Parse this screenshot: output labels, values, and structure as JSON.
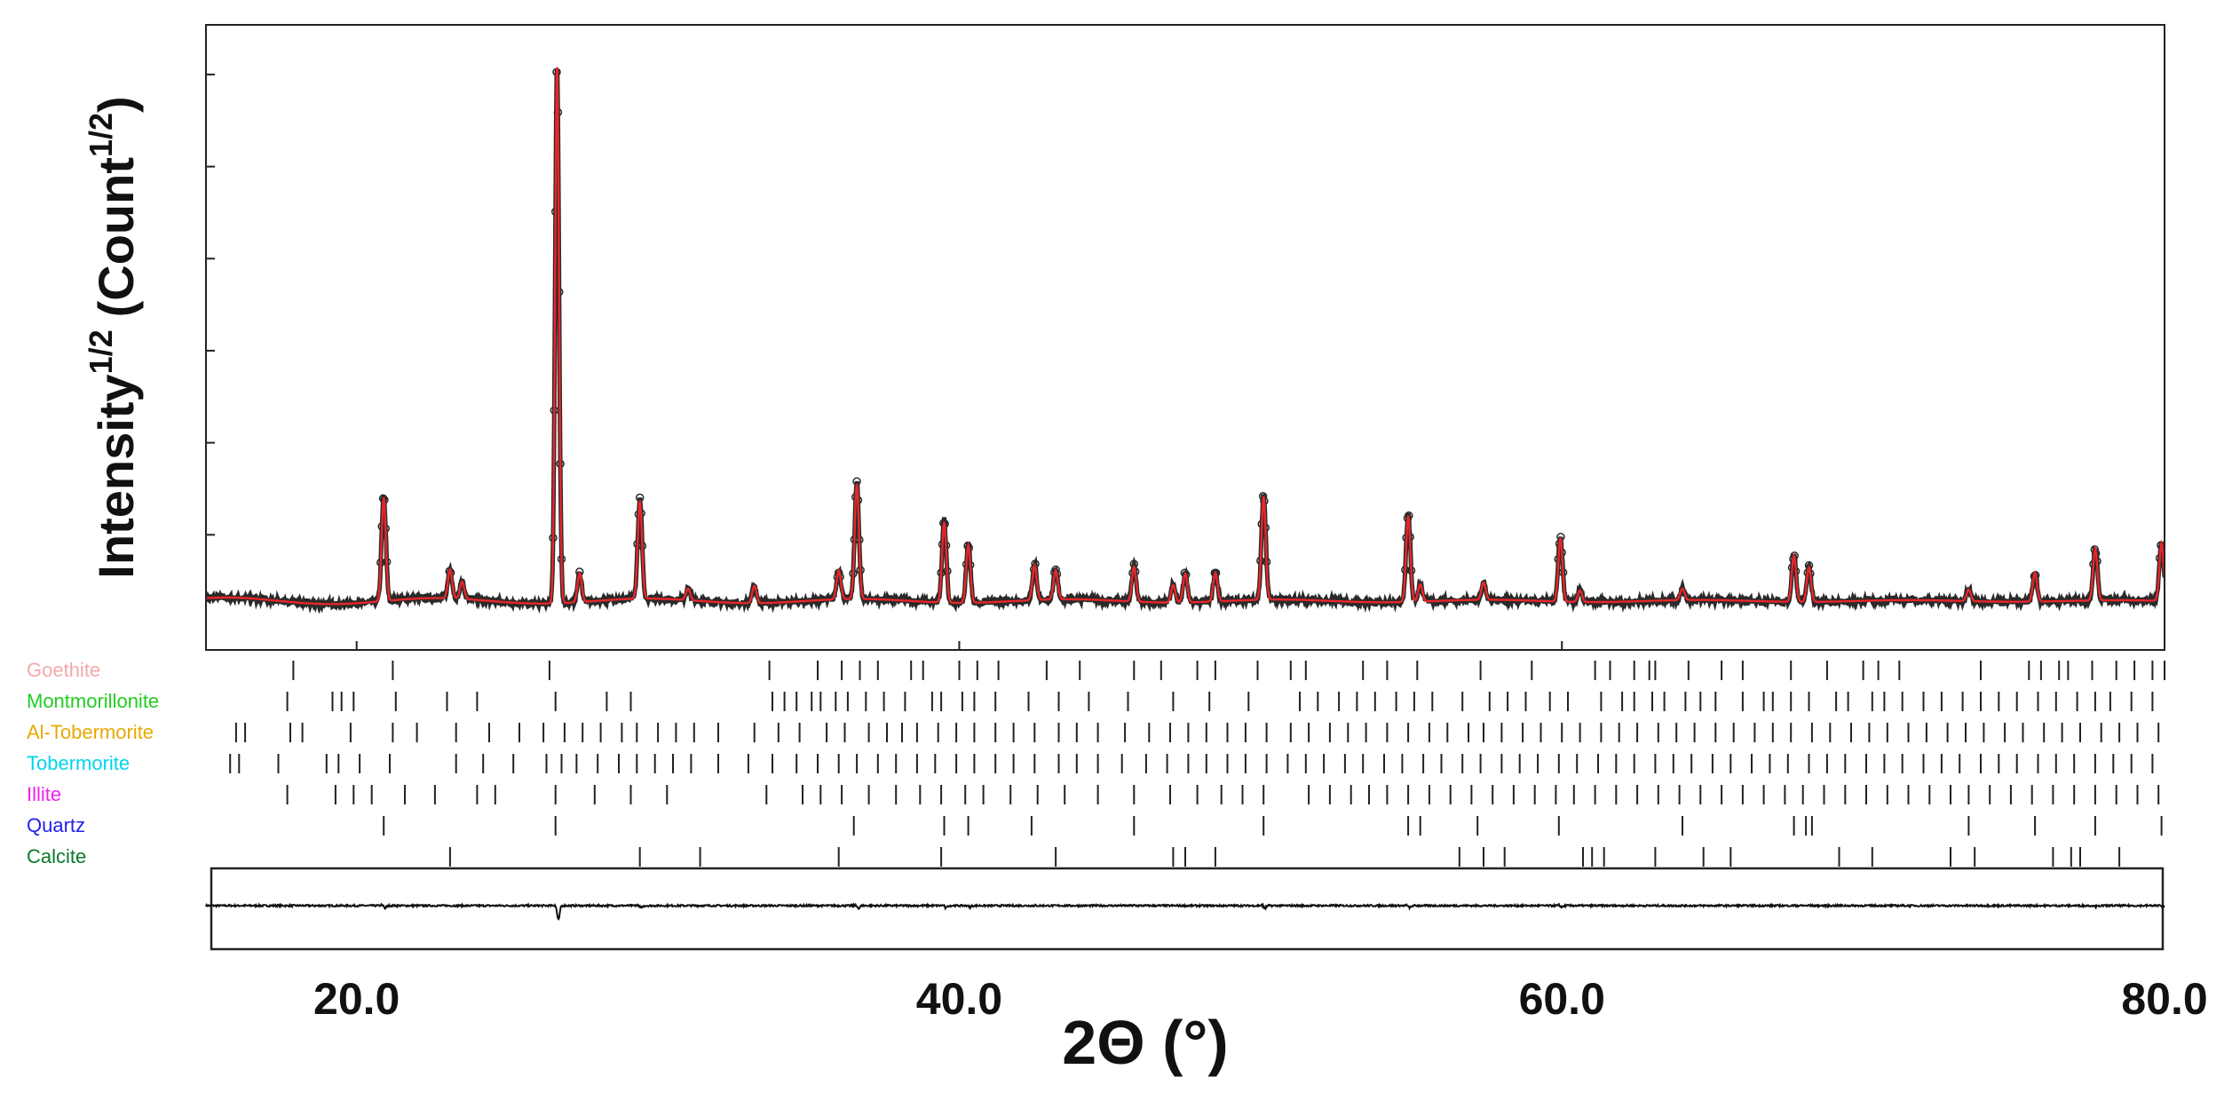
{
  "chart_data": {
    "type": "line",
    "title": "",
    "xlabel": "2Θ (°)",
    "ylabel": "Intensity",
    "ylabel_sup": "1/2",
    "ylabel_unit": "(Count",
    "ylabel_unit_sup": "1/2",
    "ylabel_unit_close": ")",
    "xlim": [
      15.0,
      80.0
    ],
    "x_ticks": [
      20.0,
      40.0,
      60.0,
      80.0
    ],
    "x_tick_labels": [
      "20.0",
      "40.0",
      "60.0",
      "80.0"
    ],
    "y_tick_count": 6,
    "ylim": [
      0,
      100
    ],
    "y_tick_values": [
      16,
      32,
      48,
      64,
      80,
      96
    ],
    "background": 4.5,
    "peaks": [
      {
        "x": 20.9,
        "y": 18
      },
      {
        "x": 23.1,
        "y": 5
      },
      {
        "x": 23.5,
        "y": 3
      },
      {
        "x": 26.7,
        "y": 5
      },
      {
        "x": 26.65,
        "y": 90
      },
      {
        "x": 27.4,
        "y": 5
      },
      {
        "x": 29.4,
        "y": 17
      },
      {
        "x": 31.0,
        "y": 2
      },
      {
        "x": 33.2,
        "y": 3
      },
      {
        "x": 36.0,
        "y": 5
      },
      {
        "x": 36.6,
        "y": 20
      },
      {
        "x": 39.5,
        "y": 14
      },
      {
        "x": 40.3,
        "y": 10
      },
      {
        "x": 42.5,
        "y": 6
      },
      {
        "x": 43.2,
        "y": 5
      },
      {
        "x": 45.8,
        "y": 6
      },
      {
        "x": 47.1,
        "y": 3
      },
      {
        "x": 47.5,
        "y": 5
      },
      {
        "x": 48.5,
        "y": 5
      },
      {
        "x": 50.1,
        "y": 18
      },
      {
        "x": 54.9,
        "y": 15
      },
      {
        "x": 55.3,
        "y": 3
      },
      {
        "x": 57.4,
        "y": 3
      },
      {
        "x": 59.95,
        "y": 11
      },
      {
        "x": 60.6,
        "y": 2
      },
      {
        "x": 64.0,
        "y": 2
      },
      {
        "x": 67.7,
        "y": 8
      },
      {
        "x": 68.2,
        "y": 6
      },
      {
        "x": 73.5,
        "y": 2
      },
      {
        "x": 75.7,
        "y": 5
      },
      {
        "x": 77.7,
        "y": 9
      },
      {
        "x": 79.9,
        "y": 10
      }
    ],
    "series": [
      {
        "name": "",
        "kind": "observed",
        "color": "#2a2a2a"
      },
      {
        "name": "",
        "kind": "calculated",
        "color": "#e8262b"
      },
      {
        "name": "",
        "kind": "difference",
        "color": "#111111"
      }
    ],
    "phases": [
      {
        "name": "Goethite",
        "color": "#f4a8a8",
        "positions": [
          17.9,
          21.2,
          26.4,
          33.7,
          35.3,
          36.1,
          36.7,
          37.3,
          38.4,
          38.8,
          40.0,
          40.6,
          41.3,
          42.9,
          44.0,
          45.8,
          46.7,
          47.9,
          48.5,
          49.9,
          51.0,
          51.5,
          53.4,
          54.2,
          55.2,
          57.3,
          59.0,
          61.1,
          61.6,
          62.4,
          62.9,
          63.1,
          64.2,
          65.3,
          66.0,
          67.6,
          68.8,
          70.0,
          70.5,
          71.2,
          73.9,
          75.5,
          75.9,
          76.5,
          76.8,
          77.6,
          78.4,
          79.0,
          79.6,
          80.0
        ]
      },
      {
        "name": "Montmorillonite",
        "color": "#22cc22",
        "positions": [
          17.7,
          19.2,
          19.5,
          19.9,
          21.3,
          23.0,
          24.0,
          26.6,
          28.3,
          29.1,
          33.8,
          34.2,
          34.6,
          35.1,
          35.4,
          35.9,
          36.3,
          36.9,
          37.5,
          38.2,
          39.1,
          39.4,
          40.1,
          40.5,
          41.2,
          42.3,
          43.3,
          44.3,
          45.6,
          47.1,
          48.3,
          49.6,
          51.3,
          51.9,
          52.6,
          53.2,
          53.8,
          54.5,
          55.1,
          55.7,
          56.7,
          57.6,
          58.2,
          58.8,
          59.6,
          60.2,
          61.3,
          62.0,
          62.4,
          63.0,
          63.4,
          64.1,
          64.6,
          65.1,
          66.0,
          66.7,
          67.0,
          67.6,
          68.2,
          69.1,
          69.5,
          70.3,
          70.7,
          71.3,
          72.0,
          72.6,
          73.3,
          73.9,
          74.5,
          75.1,
          75.8,
          76.4,
          77.1,
          77.7,
          78.2,
          78.9,
          79.6
        ]
      },
      {
        "name": "Al-Tobermorite",
        "color": "#e8a800",
        "positions": [
          16.0,
          16.3,
          17.8,
          18.2,
          19.8,
          21.2,
          22.0,
          23.3,
          24.4,
          25.4,
          26.2,
          26.9,
          27.5,
          28.1,
          28.8,
          29.3,
          30.0,
          30.6,
          31.2,
          32.0,
          33.2,
          34.0,
          34.7,
          35.6,
          36.2,
          37.0,
          37.6,
          38.1,
          38.6,
          39.3,
          39.9,
          40.5,
          41.2,
          41.8,
          42.5,
          43.3,
          43.9,
          44.6,
          45.5,
          46.3,
          47.0,
          47.6,
          48.2,
          48.9,
          49.5,
          50.2,
          51.0,
          51.6,
          52.3,
          52.9,
          53.5,
          54.2,
          54.9,
          55.6,
          56.2,
          56.9,
          57.4,
          58.0,
          58.7,
          59.3,
          60.0,
          60.6,
          61.3,
          61.9,
          62.5,
          63.2,
          63.8,
          64.4,
          65.1,
          65.7,
          66.4,
          67.0,
          67.6,
          68.3,
          68.9,
          69.6,
          70.2,
          70.8,
          71.5,
          72.1,
          72.8,
          73.4,
          74.0,
          74.7,
          75.3,
          76.0,
          76.6,
          77.2,
          77.9,
          78.5,
          79.1,
          79.8
        ]
      },
      {
        "name": "Tobermorite",
        "color": "#00d4ee",
        "positions": [
          15.8,
          16.1,
          17.4,
          19.0,
          19.4,
          20.1,
          21.1,
          23.3,
          24.2,
          25.2,
          26.3,
          26.8,
          27.3,
          28.0,
          28.7,
          29.3,
          29.9,
          30.5,
          31.1,
          32.0,
          33.0,
          33.8,
          34.6,
          35.3,
          36.0,
          36.6,
          37.3,
          37.9,
          38.6,
          39.2,
          39.9,
          40.5,
          41.2,
          41.8,
          42.5,
          43.3,
          43.9,
          44.6,
          45.4,
          46.2,
          46.9,
          47.6,
          48.2,
          48.9,
          49.5,
          50.2,
          50.9,
          51.5,
          52.1,
          52.8,
          53.4,
          54.1,
          54.7,
          55.4,
          56.0,
          56.7,
          57.3,
          58.0,
          58.6,
          59.2,
          59.9,
          60.5,
          61.2,
          61.8,
          62.4,
          63.1,
          63.7,
          64.3,
          65.0,
          65.6,
          66.3,
          66.9,
          67.5,
          68.2,
          68.8,
          69.4,
          70.1,
          70.7,
          71.3,
          72.0,
          72.6,
          73.2,
          73.9,
          74.5,
          75.1,
          75.8,
          76.4,
          77.0,
          77.7,
          78.3,
          78.9,
          79.6
        ]
      },
      {
        "name": "Illite",
        "color": "#ee22ee",
        "positions": [
          17.7,
          19.3,
          19.9,
          20.5,
          21.6,
          22.6,
          24.0,
          24.6,
          26.6,
          27.9,
          29.1,
          30.3,
          33.6,
          34.8,
          35.4,
          36.1,
          37.0,
          37.9,
          38.7,
          39.4,
          40.2,
          40.8,
          41.7,
          42.6,
          43.5,
          44.6,
          45.8,
          47.0,
          47.9,
          48.7,
          49.4,
          50.1,
          51.6,
          52.3,
          53.0,
          53.6,
          54.2,
          54.9,
          55.6,
          56.3,
          57.0,
          57.7,
          58.4,
          59.1,
          59.8,
          60.4,
          61.1,
          61.8,
          62.5,
          63.2,
          63.9,
          64.6,
          65.3,
          66.0,
          66.7,
          67.4,
          68.0,
          68.7,
          69.4,
          70.1,
          70.8,
          71.5,
          72.2,
          72.9,
          73.5,
          74.2,
          74.9,
          75.6,
          76.3,
          77.0,
          77.7,
          78.4,
          79.1,
          79.8
        ]
      },
      {
        "name": "Quartz",
        "color": "#2222ee",
        "positions": [
          20.9,
          26.6,
          36.5,
          39.5,
          40.3,
          42.4,
          45.8,
          50.1,
          54.9,
          55.3,
          57.2,
          59.9,
          64.0,
          67.7,
          68.1,
          68.3,
          73.5,
          75.7,
          77.7,
          79.9
        ]
      },
      {
        "name": "Calcite",
        "color": "#0a7a2a",
        "positions": [
          23.1,
          29.4,
          31.4,
          36.0,
          39.4,
          43.2,
          47.1,
          47.5,
          48.5,
          56.6,
          57.4,
          58.1,
          60.7,
          61.0,
          61.4,
          63.1,
          64.7,
          65.6,
          69.2,
          70.3,
          72.9,
          73.7,
          76.3,
          76.9,
          77.2,
          78.5
        ]
      }
    ]
  }
}
